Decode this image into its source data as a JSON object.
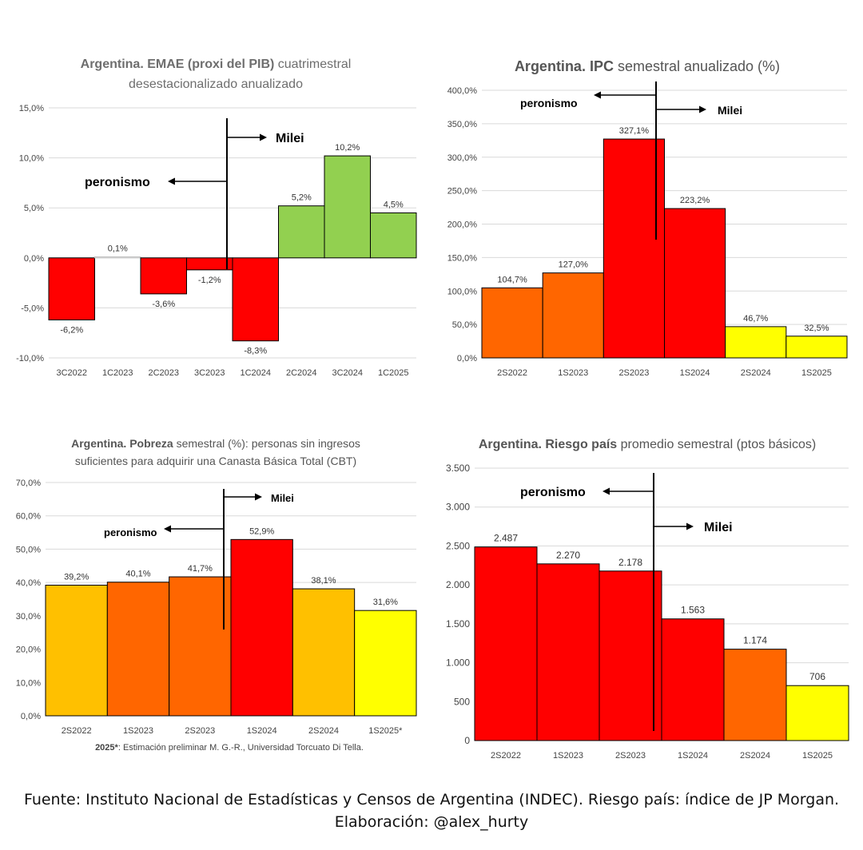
{
  "chart_data": [
    {
      "type": "bar",
      "title_bold": "Argentina. EMAE (proxi del PIB)",
      "title_rest": " cuatrimestral",
      "title_line2": "desestacionalizado anualizado",
      "categories": [
        "3C2022",
        "1C2023",
        "2C2023",
        "3C2023",
        "1C2024",
        "2C2024",
        "3C2024",
        "1C2025"
      ],
      "values": [
        -6.2,
        0.1,
        -3.6,
        -1.2,
        -8.3,
        5.2,
        10.2,
        4.5
      ],
      "data_labels": [
        "-6,2%",
        "0,1%",
        "-3,6%",
        "-1,2%",
        "-8,3%",
        "5,2%",
        "10,2%",
        "4,5%"
      ],
      "colors": [
        "#ff0000",
        "#ffffff",
        "#ff0000",
        "#ff0000",
        "#ff0000",
        "#92d050",
        "#92d050",
        "#92d050"
      ],
      "ylim": [
        -10,
        15
      ],
      "yticks": [
        -10,
        -5,
        0,
        5,
        10,
        15
      ],
      "ytick_labels": [
        "-10,0%",
        "-5,0%",
        "0,0%",
        "5,0%",
        "10,0%",
        "15,0%"
      ],
      "grid": true,
      "annotations": {
        "left": "peronismo",
        "right": "Milei"
      }
    },
    {
      "type": "bar",
      "title_bold": "Argentina. IPC",
      "title_rest": " semestral anualizado (%)",
      "title_line2": "",
      "categories": [
        "2S2022",
        "1S2023",
        "2S2023",
        "1S2024",
        "2S2024",
        "1S2025"
      ],
      "values": [
        104.7,
        127.0,
        327.1,
        223.2,
        46.7,
        32.5
      ],
      "data_labels": [
        "104,7%",
        "127,0%",
        "327,1%",
        "223,2%",
        "46,7%",
        "32,5%"
      ],
      "colors": [
        "#ff6600",
        "#ff6600",
        "#ff0000",
        "#ff0000",
        "#ffff00",
        "#ffff00"
      ],
      "ylim": [
        0,
        400
      ],
      "yticks": [
        0,
        50,
        100,
        150,
        200,
        250,
        300,
        350,
        400
      ],
      "ytick_labels": [
        "0,0%",
        "50,0%",
        "100,0%",
        "150,0%",
        "200,0%",
        "250,0%",
        "300,0%",
        "350,0%",
        "400,0%"
      ],
      "grid": true,
      "annotations": {
        "left": "peronismo",
        "right": "Milei"
      }
    },
    {
      "type": "bar",
      "title_bold": "Argentina. Pobreza",
      "title_rest": " semestral (%): personas sin ingresos",
      "title_line2": "suficientes para adquirir una Canasta Básica Total (CBT)",
      "categories": [
        "2S2022",
        "1S2023",
        "2S2023",
        "1S2024",
        "2S2024",
        "1S2025*"
      ],
      "values": [
        39.2,
        40.1,
        41.7,
        52.9,
        38.1,
        31.6
      ],
      "data_labels": [
        "39,2%",
        "40,1%",
        "41,7%",
        "52,9%",
        "38,1%",
        "31,6%"
      ],
      "colors": [
        "#ffc000",
        "#ff6600",
        "#ff6600",
        "#ff0000",
        "#ffc000",
        "#ffff00"
      ],
      "ylim": [
        0,
        70
      ],
      "yticks": [
        0,
        10,
        20,
        30,
        40,
        50,
        60,
        70
      ],
      "ytick_labels": [
        "0,0%",
        "10,0%",
        "20,0%",
        "30,0%",
        "40,0%",
        "50,0%",
        "60,0%",
        "70,0%"
      ],
      "grid": true,
      "annotations": {
        "left": "peronismo",
        "right": "Milei"
      },
      "note_bold": "2025*",
      "note_rest": ": Estimación preliminar M. G.-R., Universidad Torcuato Di Tella."
    },
    {
      "type": "bar",
      "title_bold": "Argentina. Riesgo país",
      "title_rest": " promedio semestral (ptos básicos)",
      "title_line2": "",
      "categories": [
        "2S2022",
        "1S2023",
        "2S2023",
        "1S2024",
        "2S2024",
        "1S2025"
      ],
      "values": [
        2487,
        2270,
        2178,
        1563,
        1174,
        706
      ],
      "data_labels": [
        "2.487",
        "2.270",
        "2.178",
        "1.563",
        "1.174",
        "706"
      ],
      "colors": [
        "#ff0000",
        "#ff0000",
        "#ff0000",
        "#ff0000",
        "#ff6600",
        "#ffff00"
      ],
      "ylim": [
        0,
        3500
      ],
      "yticks": [
        0,
        500,
        1000,
        1500,
        2000,
        2500,
        3000,
        3500
      ],
      "ytick_labels": [
        "0",
        "500",
        "1.000",
        "1.500",
        "2.000",
        "2.500",
        "3.000",
        "3.500"
      ],
      "grid": true,
      "annotations": {
        "left": "peronismo",
        "right": "Milei"
      }
    }
  ],
  "footer": {
    "line1": "Fuente: Instituto Nacional de Estadísticas y Censos de Argentina (INDEC). Riesgo país: índice de JP Morgan.",
    "line2": "Elaboración: @alex_hurty"
  }
}
